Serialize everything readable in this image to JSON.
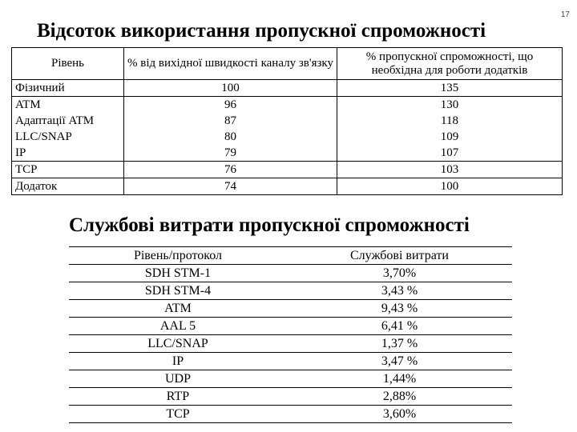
{
  "page_number": "17",
  "section1": {
    "title": "Відсоток використання пропускної спроможності",
    "headers": [
      "Рівень",
      "% від вихідної швидкості каналу зв'язку",
      "% пропускної спроможності, що необхідна для роботи додатків"
    ],
    "rows": [
      [
        "Фізичний",
        "100",
        "135"
      ],
      [
        "ATM",
        "96",
        "130"
      ],
      [
        "Адаптації ATM",
        "87",
        "118"
      ],
      [
        "LLC/SNAP",
        "80",
        "109"
      ],
      [
        "IP",
        "79",
        "107"
      ],
      [
        "TCP",
        "76",
        "103"
      ],
      [
        "Додаток",
        "74",
        "100"
      ]
    ]
  },
  "section2": {
    "title": "Службові витрати пропускної спроможності",
    "headers": [
      "Рівень/протокол",
      "Службові витрати"
    ],
    "rows": [
      [
        "SDH STM-1",
        "3,70%"
      ],
      [
        "SDH STM-4",
        "3,43 %"
      ],
      [
        "ATM",
        "9,43 %"
      ],
      [
        "AAL 5",
        "6,41 %"
      ],
      [
        "LLC/SNAP",
        "1,37 %"
      ],
      [
        "IP",
        "3,47 %"
      ],
      [
        "UDP",
        "1,44%"
      ],
      [
        "RTP",
        "2,88%"
      ],
      [
        "TCP",
        "3,60%"
      ]
    ]
  }
}
